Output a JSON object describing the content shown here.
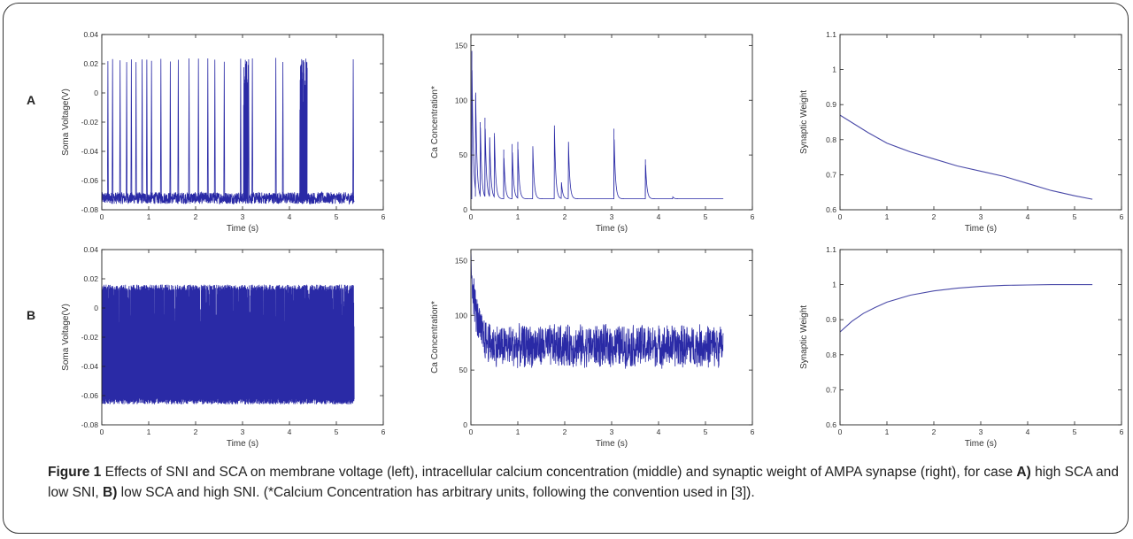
{
  "row_labels": [
    "A",
    "B"
  ],
  "caption": {
    "figure_label": "Figure 1",
    "text1": " Effects of SNI and SCA on membrane voltage (left), intracellular calcium concentration (middle) and synaptic weight of AMPA synapse (right), for case ",
    "case_a_label": "A)",
    "text2": " high SCA and low SNI, ",
    "case_b_label": "B)",
    "text3": " low SCA and high SNI. (*Calcium Concentration has arbitrary units, following the convention used in [3])."
  },
  "chart_data": [
    {
      "id": "A-voltage",
      "row": "A",
      "col": 0,
      "type": "line",
      "style": "spikes",
      "xlabel": "Time (s)",
      "ylabel": "Soma Voltage(V)",
      "xlim": [
        0,
        6
      ],
      "ylim": [
        -0.08,
        0.04
      ],
      "xticks": [
        0,
        1,
        2,
        3,
        4,
        5,
        6
      ],
      "xtick_labels": [
        "0",
        "1",
        "2",
        "3",
        "4",
        "5",
        "6"
      ],
      "yticks": [
        -0.08,
        -0.06,
        -0.04,
        -0.02,
        0,
        0.02,
        0.04
      ],
      "ytick_labels": [
        "-0.08",
        "-0.06",
        "-0.04",
        "-0.02",
        "0",
        "0.02",
        "0.04"
      ],
      "series": [
        {
          "color": "#2a2aa6",
          "t_end": 5.38,
          "baseline": -0.072,
          "noise": 0.004,
          "peak": 0.024,
          "spike_times": [
            0.12,
            0.22,
            0.38,
            0.52,
            0.62,
            0.72,
            0.85,
            0.95,
            1.05,
            1.25,
            1.45,
            1.62,
            1.85,
            2.05,
            2.25,
            2.4,
            2.6,
            2.95,
            3.05,
            3.08,
            3.12,
            3.2,
            3.7,
            3.85,
            4.25,
            4.3,
            4.35,
            5.35
          ],
          "bursts": [
            [
              3.02,
              3.12
            ],
            [
              4.22,
              4.38
            ]
          ]
        }
      ]
    },
    {
      "id": "A-calcium",
      "row": "A",
      "col": 1,
      "type": "line",
      "style": "decay-peaks",
      "xlabel": "Time (s)",
      "ylabel": "Ca Concentration*",
      "xlim": [
        0,
        6
      ],
      "ylim": [
        0,
        160
      ],
      "xticks": [
        0,
        1,
        2,
        3,
        4,
        5,
        6
      ],
      "xtick_labels": [
        "0",
        "1",
        "2",
        "3",
        "4",
        "5",
        "6"
      ],
      "yticks": [
        0,
        50,
        100,
        150
      ],
      "ytick_labels": [
        "0",
        "50",
        "100",
        "150"
      ],
      "series": [
        {
          "color": "#2a2aa6",
          "t_end": 5.38,
          "baseline": 10,
          "peaks": [
            [
              0.02,
              145
            ],
            [
              0.1,
              105
            ],
            [
              0.2,
              80
            ],
            [
              0.3,
              84
            ],
            [
              0.4,
              65
            ],
            [
              0.5,
              70
            ],
            [
              0.7,
              55
            ],
            [
              0.88,
              60
            ],
            [
              1.0,
              62
            ],
            [
              1.32,
              58
            ],
            [
              1.78,
              77
            ],
            [
              1.93,
              25
            ],
            [
              2.08,
              62
            ],
            [
              3.05,
              74
            ],
            [
              3.72,
              46
            ],
            [
              4.3,
              12
            ]
          ]
        }
      ]
    },
    {
      "id": "A-weight",
      "row": "A",
      "col": 2,
      "type": "line",
      "style": "smooth",
      "xlabel": "Time (s)",
      "ylabel": "Synaptic Weight",
      "xlim": [
        0,
        6
      ],
      "ylim": [
        0.6,
        1.1
      ],
      "xticks": [
        0,
        1,
        2,
        3,
        4,
        5,
        6
      ],
      "xtick_labels": [
        "0",
        "1",
        "2",
        "3",
        "4",
        "5",
        "6"
      ],
      "yticks": [
        0.6,
        0.7,
        0.8,
        0.9,
        1.0,
        1.1
      ],
      "ytick_labels": [
        "0.6",
        "0.7",
        "0.8",
        "0.9",
        "1",
        "1.1"
      ],
      "series": [
        {
          "color": "#4a4aa8",
          "x": [
            0,
            0.3,
            0.6,
            1.0,
            1.5,
            2.0,
            2.5,
            3.0,
            3.5,
            4.0,
            4.5,
            5.0,
            5.38
          ],
          "y": [
            0.87,
            0.845,
            0.82,
            0.79,
            0.765,
            0.745,
            0.725,
            0.71,
            0.695,
            0.675,
            0.655,
            0.64,
            0.63
          ]
        }
      ]
    },
    {
      "id": "B-voltage",
      "row": "B",
      "col": 0,
      "type": "line",
      "style": "dense",
      "xlabel": "Time (s)",
      "ylabel": "Soma Voltage(V)",
      "xlim": [
        0,
        6
      ],
      "ylim": [
        -0.08,
        0.04
      ],
      "xticks": [
        0,
        1,
        2,
        3,
        4,
        5,
        6
      ],
      "xtick_labels": [
        "0",
        "1",
        "2",
        "3",
        "4",
        "5",
        "6"
      ],
      "yticks": [
        -0.08,
        -0.06,
        -0.04,
        -0.02,
        0,
        0.02,
        0.04
      ],
      "ytick_labels": [
        "-0.08",
        "-0.06",
        "-0.04",
        "-0.02",
        "0",
        "0.02",
        "0.04"
      ],
      "series": [
        {
          "color": "#2a2aa6",
          "t_end": 5.38,
          "low": -0.066,
          "high": 0.016
        }
      ]
    },
    {
      "id": "B-calcium",
      "row": "B",
      "col": 1,
      "type": "line",
      "style": "noisy",
      "xlabel": "Time (s)",
      "ylabel": "Ca Concentration*",
      "xlim": [
        0,
        6
      ],
      "ylim": [
        0,
        160
      ],
      "xticks": [
        0,
        1,
        2,
        3,
        4,
        5,
        6
      ],
      "xtick_labels": [
        "0",
        "1",
        "2",
        "3",
        "4",
        "5",
        "6"
      ],
      "yticks": [
        0,
        50,
        100,
        150
      ],
      "ytick_labels": [
        "0",
        "50",
        "100",
        "150"
      ],
      "series": [
        {
          "color": "#2a2aa6",
          "t_end": 5.38,
          "start": 150,
          "mean": 72,
          "spread": 28
        }
      ]
    },
    {
      "id": "B-weight",
      "row": "B",
      "col": 2,
      "type": "line",
      "style": "smooth",
      "xlabel": "Time (s)",
      "ylabel": "Synaptic Weight",
      "xlim": [
        0,
        6
      ],
      "ylim": [
        0.6,
        1.1
      ],
      "xticks": [
        0,
        1,
        2,
        3,
        4,
        5,
        6
      ],
      "xtick_labels": [
        "0",
        "1",
        "2",
        "3",
        "4",
        "5",
        "6"
      ],
      "yticks": [
        0.6,
        0.7,
        0.8,
        0.9,
        1.0,
        1.1
      ],
      "ytick_labels": [
        "0.6",
        "0.7",
        "0.8",
        "0.9",
        "1",
        "1.1"
      ],
      "series": [
        {
          "color": "#4a4aa8",
          "x": [
            0,
            0.25,
            0.5,
            0.75,
            1.0,
            1.5,
            2.0,
            2.5,
            3.0,
            3.5,
            4.0,
            4.5,
            5.0,
            5.38
          ],
          "y": [
            0.865,
            0.895,
            0.918,
            0.935,
            0.95,
            0.97,
            0.982,
            0.99,
            0.995,
            0.998,
            0.999,
            1.0,
            1.0,
            1.0
          ]
        }
      ]
    }
  ]
}
